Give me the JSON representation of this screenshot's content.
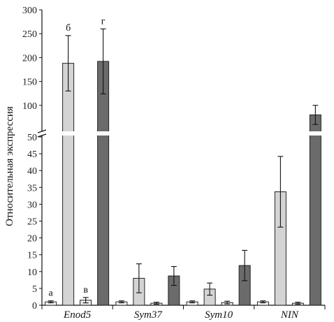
{
  "chart_data": {
    "type": "bar",
    "ylabel": "Относительная экспрессия",
    "categories": [
      "Enod5",
      "Sym37",
      "Sym10",
      "NIN"
    ],
    "y_axis_break": true,
    "lower_ylim": [
      0,
      50
    ],
    "upper_ylim": [
      50,
      300
    ],
    "lower_ticks": [
      "0",
      "5",
      "10",
      "15",
      "20",
      "25",
      "30",
      "35",
      "40",
      "45",
      "50"
    ],
    "upper_ticks": [
      "100",
      "150",
      "200",
      "250",
      "300"
    ],
    "series_colors": [
      "#ffffff",
      "#d4d4d4",
      "#ececec",
      "#6b6b6b"
    ],
    "series": [
      {
        "values": [
          1.0,
          1.0,
          1.0,
          1.0
        ],
        "errors": [
          0.3,
          0.3,
          0.3,
          0.3
        ]
      },
      {
        "values": [
          188,
          8,
          4.8,
          33.7
        ],
        "errors": [
          58,
          4.3,
          1.8,
          10.5
        ]
      },
      {
        "values": [
          1.5,
          0.6,
          0.8,
          0.6
        ],
        "errors": [
          0.8,
          0.3,
          0.4,
          0.3
        ]
      },
      {
        "values": [
          192,
          8.7,
          11.8,
          80
        ],
        "errors": [
          68,
          2.8,
          4.5,
          20
        ]
      }
    ],
    "annotations": [
      {
        "category": "Enod5",
        "series_index": 0,
        "text": "а"
      },
      {
        "category": "Enod5",
        "series_index": 1,
        "text": "б"
      },
      {
        "category": "Enod5",
        "series_index": 2,
        "text": "в"
      },
      {
        "category": "Enod5",
        "series_index": 3,
        "text": "г"
      }
    ]
  }
}
